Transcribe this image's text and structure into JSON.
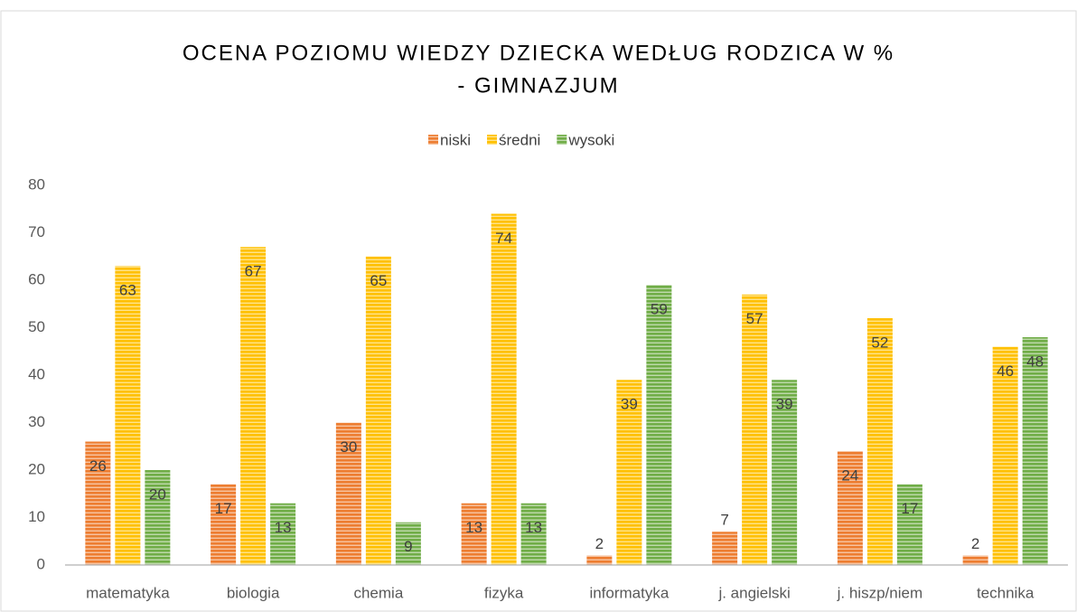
{
  "chart_data": {
    "type": "bar",
    "title": [
      "OCENA POZIOMU WIEDZY DZIECKA WEDŁUG RODZICA W %",
      "- GIMNAZJUM"
    ],
    "categories": [
      "matematyka",
      "biologia",
      "chemia",
      "fizyka",
      "informatyka",
      "j. angielski",
      "j. hiszp/niem",
      "technika"
    ],
    "series": [
      {
        "name": "niski",
        "color": "#ED7D31",
        "values": [
          26,
          17,
          30,
          13,
          2,
          7,
          24,
          2
        ]
      },
      {
        "name": "średni",
        "color": "#FFC000",
        "values": [
          63,
          67,
          65,
          74,
          39,
          57,
          52,
          46
        ]
      },
      {
        "name": "wysoki",
        "color": "#70AD47",
        "values": [
          20,
          13,
          9,
          13,
          59,
          39,
          17,
          48
        ]
      }
    ],
    "ylim": [
      0,
      80
    ],
    "yticks": [
      0,
      10,
      20,
      30,
      40,
      50,
      60,
      70,
      80
    ],
    "grid": false,
    "legend": "top"
  }
}
